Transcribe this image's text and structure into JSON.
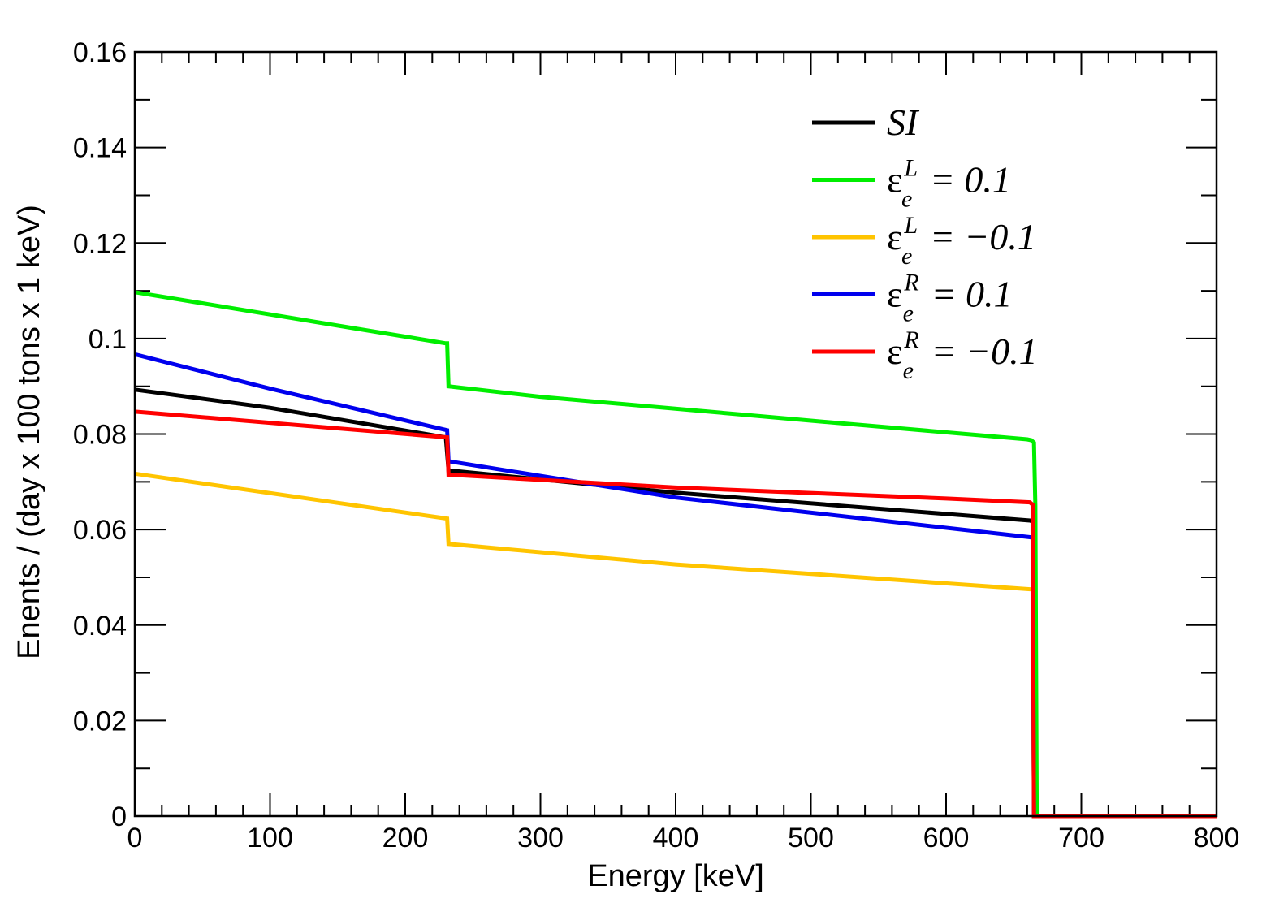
{
  "chart_data": {
    "type": "line",
    "title": "",
    "xlabel": "Energy [keV]",
    "ylabel": "Enents / (day x 100 tons x 1 keV)",
    "xlim": [
      0,
      800
    ],
    "ylim": [
      0,
      0.16
    ],
    "x_ticks": [
      0,
      100,
      200,
      300,
      400,
      500,
      600,
      700,
      800
    ],
    "x_tick_labels": [
      "0",
      "100",
      "200",
      "300",
      "400",
      "500",
      "600",
      "700",
      "800"
    ],
    "y_ticks": [
      0,
      0.02,
      0.04,
      0.06,
      0.08,
      0.1,
      0.12,
      0.14,
      0.16
    ],
    "y_tick_labels": [
      "0",
      "0.02",
      "0.04",
      "0.06",
      "0.08",
      "0.1",
      "0.12",
      "0.14",
      "0.16"
    ],
    "grid": false,
    "legend_position": "top-right",
    "series": [
      {
        "name": "SI",
        "legend": {
          "base": "SI",
          "sup": "",
          "sub": "",
          "rest": ""
        },
        "color": "#000000",
        "points": [
          [
            0,
            0.0893
          ],
          [
            100,
            0.0855
          ],
          [
            230,
            0.0793
          ],
          [
            232,
            0.0724
          ],
          [
            400,
            0.0677
          ],
          [
            662,
            0.0619
          ],
          [
            664,
            0.0617
          ],
          [
            665,
            0.0
          ],
          [
            800,
            0.0
          ]
        ]
      },
      {
        "name": "ε_e^L = 0.1",
        "legend": {
          "base": "ε",
          "sup": "L",
          "sub": "e",
          "rest": " = 0.1"
        },
        "color": "#00ee00",
        "points": [
          [
            0,
            0.1097
          ],
          [
            230,
            0.099
          ],
          [
            231,
            0.099
          ],
          [
            232,
            0.09
          ],
          [
            300,
            0.0878
          ],
          [
            500,
            0.0828
          ],
          [
            660,
            0.0789
          ],
          [
            663,
            0.0787
          ],
          [
            665,
            0.0782
          ],
          [
            666,
            0.065
          ],
          [
            667,
            0.0
          ],
          [
            800,
            0.0
          ]
        ]
      },
      {
        "name": "ε_e^L = −0.1",
        "legend": {
          "base": "ε",
          "sup": "L",
          "sub": "e",
          "rest": " = −0.1"
        },
        "color": "#ffc400",
        "points": [
          [
            0,
            0.0717
          ],
          [
            231,
            0.0623
          ],
          [
            232,
            0.057
          ],
          [
            400,
            0.0527
          ],
          [
            662,
            0.0475
          ],
          [
            664,
            0.0475
          ],
          [
            665,
            0.0
          ],
          [
            800,
            0.0
          ]
        ]
      },
      {
        "name": "ε_e^R = 0.1",
        "legend": {
          "base": "ε",
          "sup": "R",
          "sub": "e",
          "rest": " = 0.1"
        },
        "color": "#0000ee",
        "points": [
          [
            0,
            0.0967
          ],
          [
            100,
            0.0895
          ],
          [
            231,
            0.0808
          ],
          [
            232,
            0.0743
          ],
          [
            400,
            0.0667
          ],
          [
            662,
            0.0584
          ],
          [
            664,
            0.0583
          ],
          [
            665,
            0.0
          ],
          [
            800,
            0.0
          ]
        ]
      },
      {
        "name": "ε_e^R = −0.1",
        "legend": {
          "base": "ε",
          "sup": "R",
          "sub": "e",
          "rest": " = −0.1"
        },
        "color": "#ff0000",
        "points": [
          [
            0,
            0.0847
          ],
          [
            231,
            0.0793
          ],
          [
            232,
            0.0715
          ],
          [
            400,
            0.0688
          ],
          [
            600,
            0.0665
          ],
          [
            662,
            0.0657
          ],
          [
            664,
            0.0652
          ],
          [
            665,
            0.0
          ],
          [
            800,
            0.0
          ]
        ]
      }
    ]
  }
}
